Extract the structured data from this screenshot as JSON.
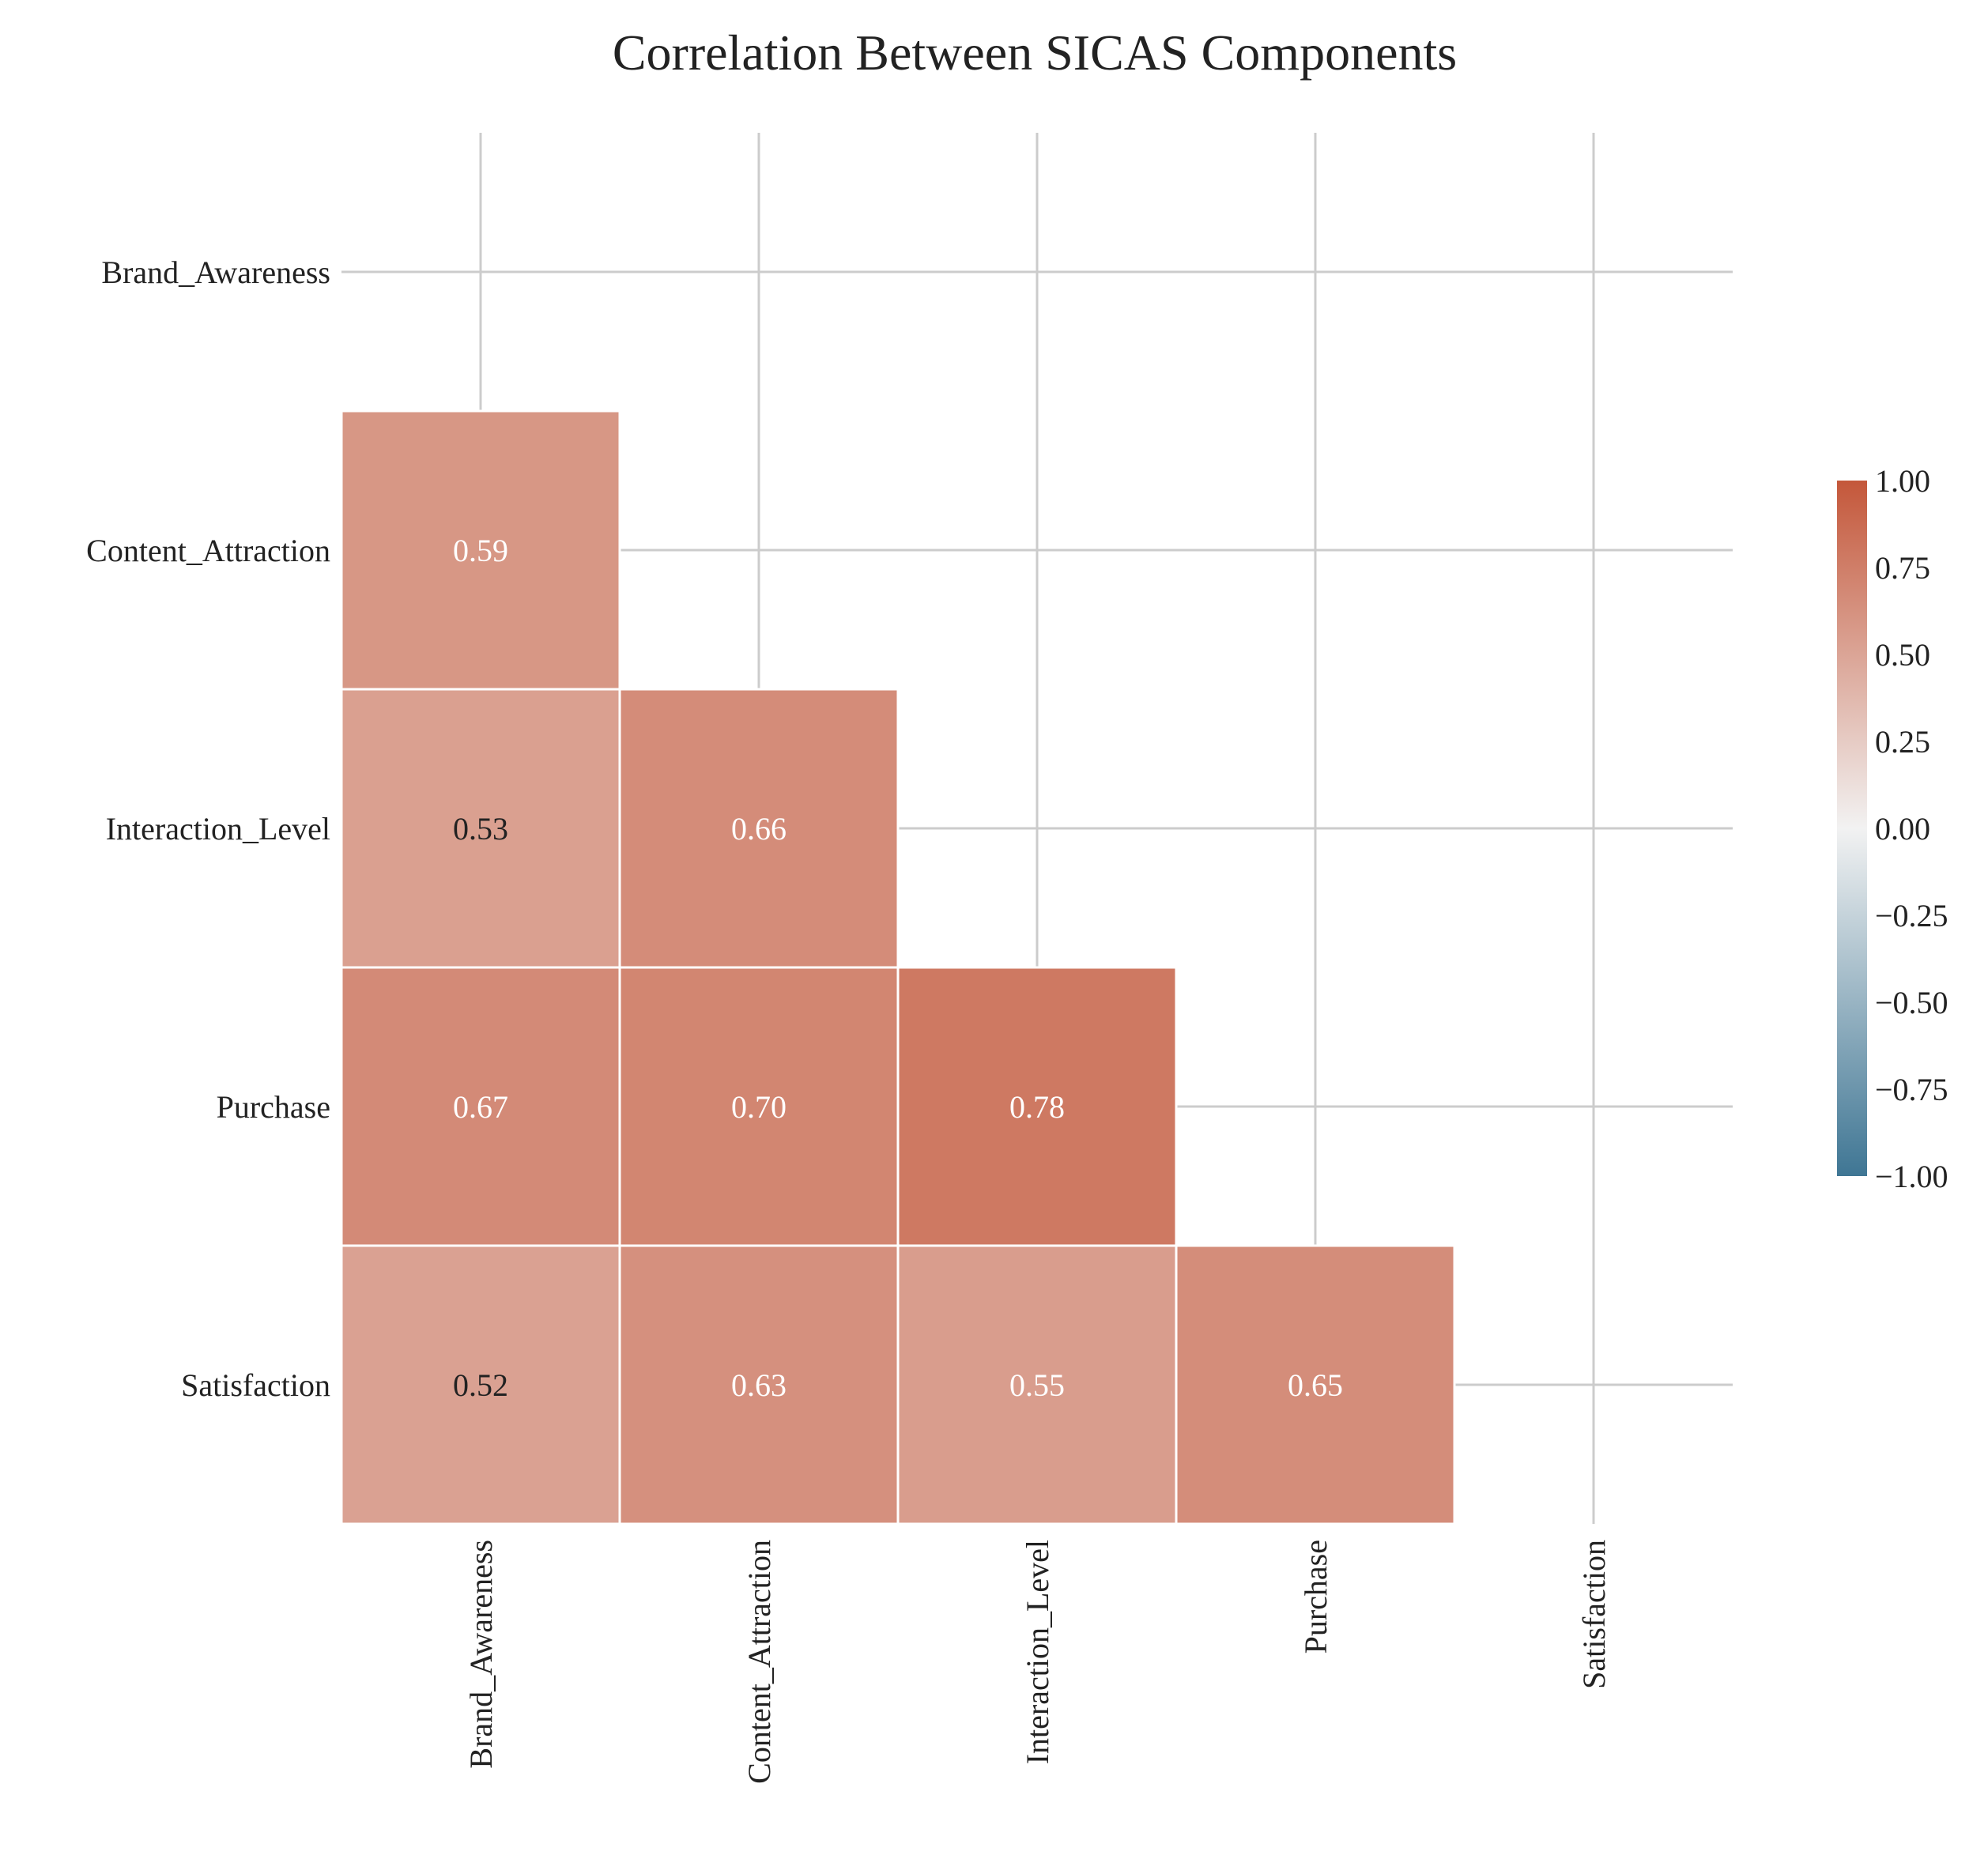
{
  "chart_data": {
    "type": "heatmap",
    "title": "Correlation Between SICAS Components",
    "variables": [
      "Brand_Awareness",
      "Content_Attraction",
      "Interaction_Level",
      "Purchase",
      "Satisfaction"
    ],
    "mask": "upper triangle including diagonal",
    "cells": [
      {
        "row": "Content_Attraction",
        "col": "Brand_Awareness",
        "value": 0.59,
        "label": "0.59"
      },
      {
        "row": "Interaction_Level",
        "col": "Brand_Awareness",
        "value": 0.53,
        "label": "0.53"
      },
      {
        "row": "Interaction_Level",
        "col": "Content_Attraction",
        "value": 0.66,
        "label": "0.66"
      },
      {
        "row": "Purchase",
        "col": "Brand_Awareness",
        "value": 0.67,
        "label": "0.67"
      },
      {
        "row": "Purchase",
        "col": "Content_Attraction",
        "value": 0.7,
        "label": "0.70"
      },
      {
        "row": "Purchase",
        "col": "Interaction_Level",
        "value": 0.78,
        "label": "0.78"
      },
      {
        "row": "Satisfaction",
        "col": "Brand_Awareness",
        "value": 0.52,
        "label": "0.52"
      },
      {
        "row": "Satisfaction",
        "col": "Content_Attraction",
        "value": 0.63,
        "label": "0.63"
      },
      {
        "row": "Satisfaction",
        "col": "Interaction_Level",
        "value": 0.55,
        "label": "0.55"
      },
      {
        "row": "Satisfaction",
        "col": "Purchase",
        "value": 0.65,
        "label": "0.65"
      }
    ],
    "colorbar": {
      "vmin": -1.0,
      "vmax": 1.0,
      "ticks": [
        "1.00",
        "0.75",
        "0.50",
        "0.25",
        "0.00",
        "−0.25",
        "−0.50",
        "−0.75",
        "−1.00"
      ],
      "colormap": "diverging blue-white-red",
      "colors": {
        "low": "#3f7694",
        "mid": "#f2f2f2",
        "high": "#c4573a"
      }
    },
    "grid": true,
    "grid_color": "#cccccc"
  }
}
